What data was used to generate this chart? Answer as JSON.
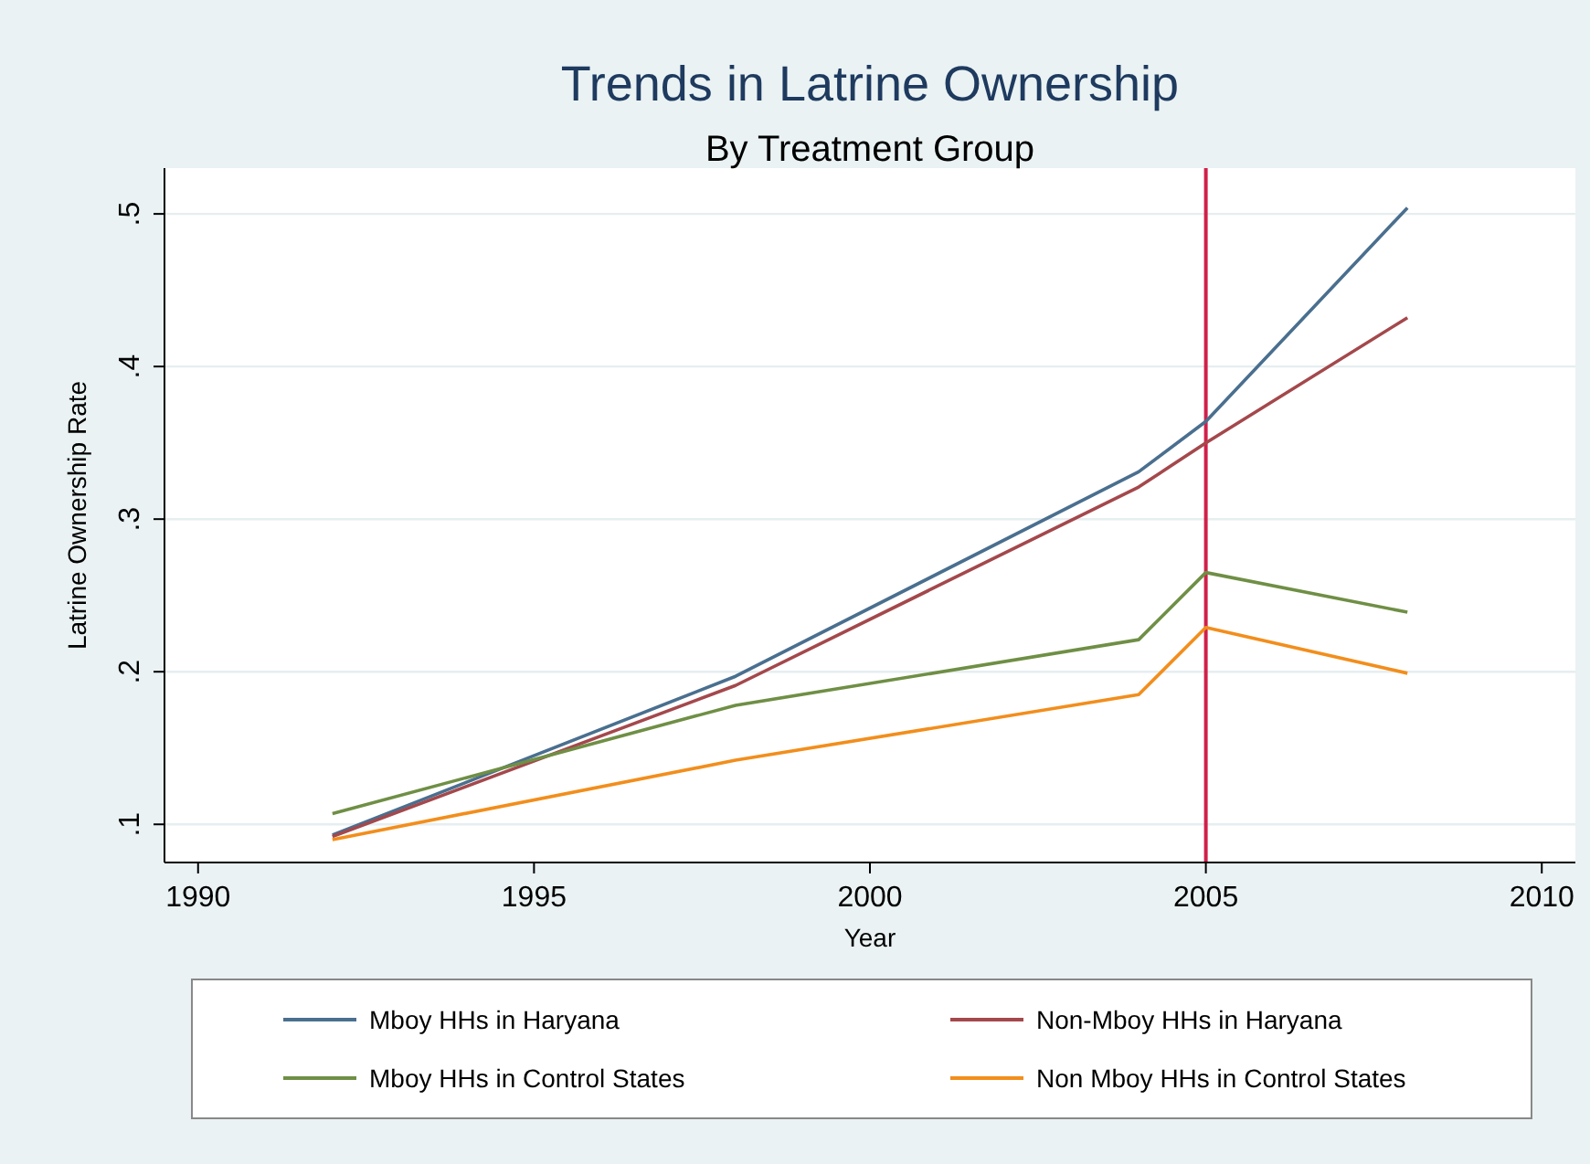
{
  "chart_data": {
    "type": "line",
    "title": "Trends in Latrine Ownership",
    "subtitle": "By Treatment Group",
    "xlabel": "Year",
    "ylabel": "Latrine Ownership Rate",
    "x": [
      1992,
      1998,
      2004,
      2005,
      2008
    ],
    "series": [
      {
        "name": "Mboy HHs in Haryana",
        "color": "#4a6f8f",
        "values": [
          0.093,
          0.197,
          0.331,
          0.364,
          0.504
        ]
      },
      {
        "name": "Non-Mboy HHs in Haryana",
        "color": "#a4484c",
        "values": [
          0.092,
          0.191,
          0.321,
          0.35,
          0.432
        ]
      },
      {
        "name": "Mboy HHs in Control States",
        "color": "#6f8f45",
        "values": [
          0.107,
          0.178,
          0.221,
          0.265,
          0.239
        ]
      },
      {
        "name": "Non Mboy HHs in Control States",
        "color": "#f28e1c",
        "values": [
          0.09,
          0.142,
          0.185,
          0.229,
          0.199
        ]
      }
    ],
    "xlim": [
      1989.5,
      2010.5
    ],
    "xticks": [
      1990,
      1995,
      2000,
      2005,
      2010
    ],
    "ylim": [
      0.075,
      0.53
    ],
    "yticks": [
      {
        "value": 0.1,
        "label": ".1"
      },
      {
        "value": 0.2,
        "label": ".2"
      },
      {
        "value": 0.3,
        "label": ".3"
      },
      {
        "value": 0.4,
        "label": ".4"
      },
      {
        "value": 0.5,
        "label": ".5"
      }
    ],
    "grid": "y",
    "legend": "bottom",
    "marker": "none",
    "line_style": "solid",
    "ref_lines": [
      {
        "axis": "x",
        "value": 2005,
        "color": "#d0204a"
      }
    ]
  }
}
